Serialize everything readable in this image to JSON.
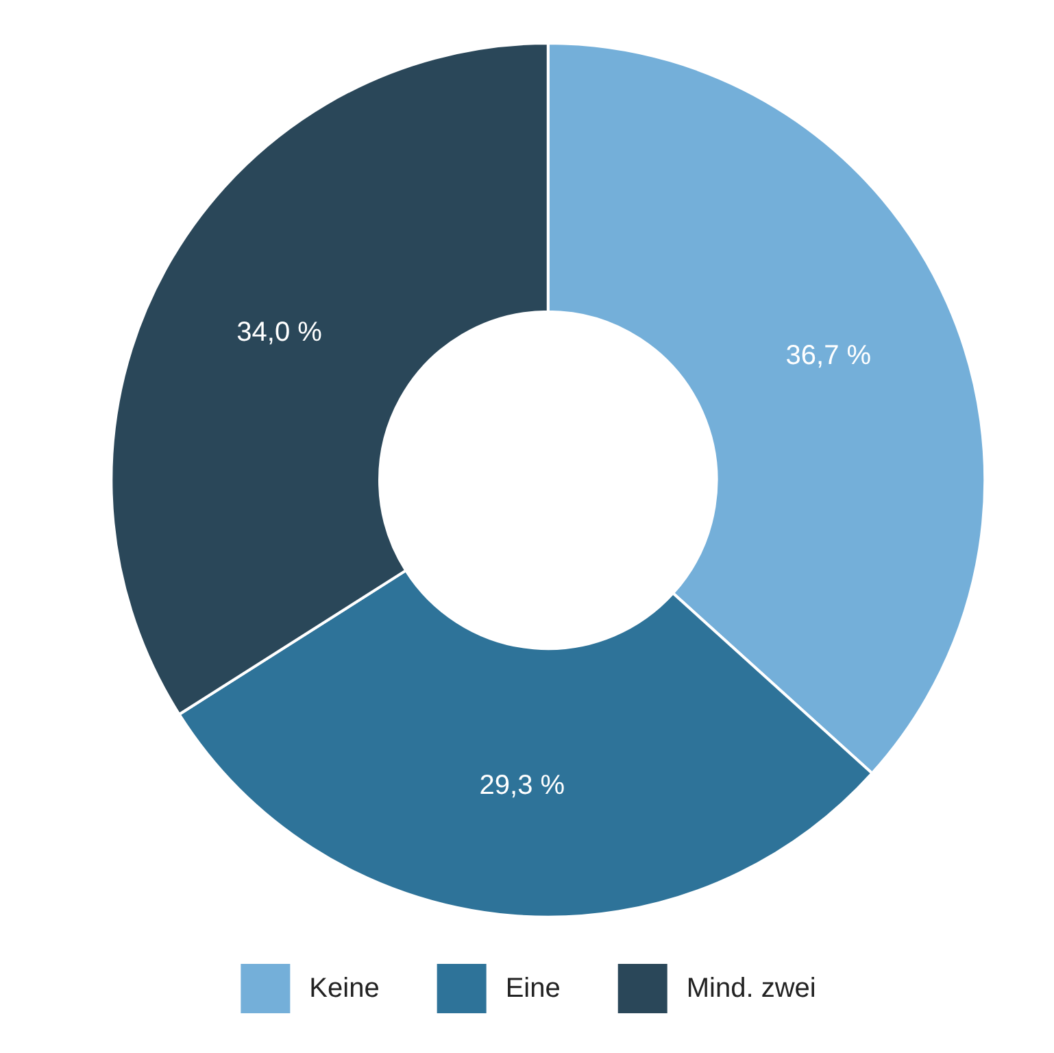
{
  "chart_data": {
    "type": "donut",
    "categories": [
      "Keine",
      "Eine",
      "Mind. zwei"
    ],
    "values": [
      36.7,
      29.3,
      34.0
    ],
    "colors": [
      "#74afd9",
      "#2e7399",
      "#2a4759"
    ],
    "value_labels": [
      "36,7 %",
      "29,3 %",
      "34,0 %"
    ],
    "legend": "bottom"
  }
}
